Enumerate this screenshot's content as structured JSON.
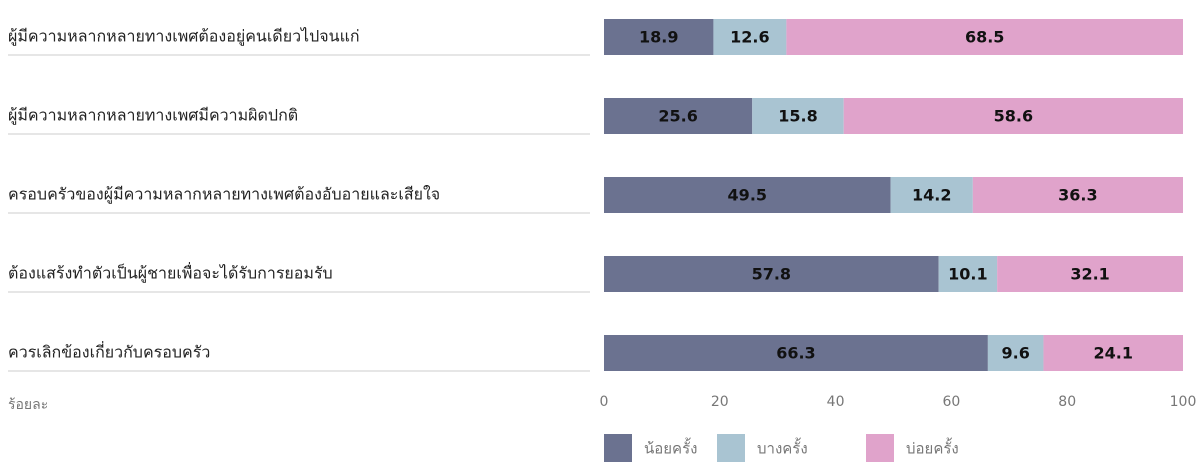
{
  "chart_data": {
    "type": "stacked-bar-horizontal",
    "categories": [
      "ผู้มีความหลากหลายทางเพศต้องอยู่คนเดียวไปจนแก่",
      "ผู้มีความหลากหลายทางเพศมีความผิดปกติ",
      "ครอบครัวของผู้มีความหลากหลายทางเพศต้องอับอายและเสียใจ",
      "ต้องแสร้งทำตัวเป็นผู้ชายเพื่อจะได้รับการยอมรับ",
      "ควรเลิกข้องเกี่ยวกับครอบครัว"
    ],
    "series": [
      {
        "name": "น้อยครั้ง",
        "color": "#6b7290",
        "values": [
          18.9,
          25.6,
          49.5,
          57.8,
          66.3
        ]
      },
      {
        "name": "บางครั้ง",
        "color": "#a9c4d2",
        "values": [
          12.6,
          15.8,
          14.2,
          10.1,
          9.6
        ]
      },
      {
        "name": "บ่อยครั้ง",
        "color": "#e0a3cb",
        "values": [
          68.5,
          58.6,
          36.3,
          32.1,
          24.1
        ]
      }
    ],
    "xlabel": "ร้อยละ",
    "xlim": [
      0,
      100
    ],
    "xticks": [
      0,
      20,
      40,
      60,
      80,
      100
    ],
    "legend": "bottom"
  }
}
